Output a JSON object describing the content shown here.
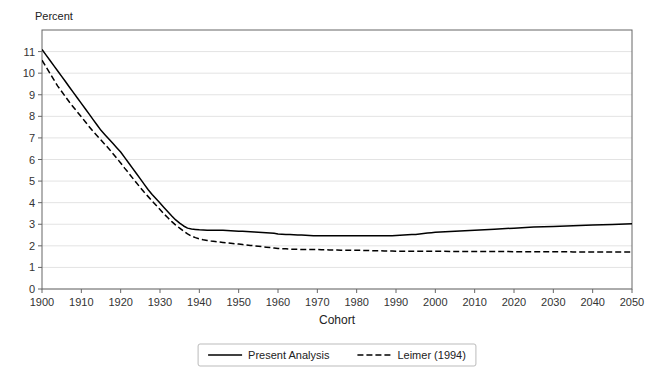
{
  "chart_data": {
    "type": "line",
    "x_label": "Cohort",
    "y_label": "Percent",
    "xlim": [
      1900,
      2050
    ],
    "ylim": [
      0,
      12
    ],
    "xticks": [
      1900,
      1910,
      1920,
      1930,
      1940,
      1950,
      1960,
      1970,
      1980,
      1990,
      2000,
      2010,
      2020,
      2030,
      2040,
      2050
    ],
    "yticks": [
      0,
      1,
      2,
      3,
      4,
      5,
      6,
      7,
      8,
      9,
      10,
      11
    ],
    "grid": true,
    "legend": "bottom",
    "series": [
      {
        "name": "Present Analysis",
        "color": "#000000",
        "line_style": "solid",
        "x": [
          1900,
          1901,
          1902,
          1903,
          1904,
          1905,
          1906,
          1907,
          1908,
          1909,
          1910,
          1911,
          1912,
          1913,
          1914,
          1915,
          1916,
          1917,
          1918,
          1919,
          1920,
          1921,
          1922,
          1923,
          1924,
          1925,
          1926,
          1927,
          1928,
          1929,
          1930,
          1931,
          1932,
          1933,
          1934,
          1935,
          1936,
          1937,
          1938,
          1939,
          1940,
          1941,
          1942,
          1943,
          1944,
          1945,
          1946,
          1947,
          1948,
          1949,
          1950,
          1951,
          1952,
          1953,
          1954,
          1955,
          1956,
          1957,
          1958,
          1959,
          1960,
          1961,
          1962,
          1963,
          1964,
          1965,
          1966,
          1967,
          1968,
          1969,
          1970,
          1971,
          1972,
          1973,
          1974,
          1975,
          1976,
          1977,
          1978,
          1979,
          1980,
          1981,
          1982,
          1983,
          1984,
          1985,
          1986,
          1987,
          1988,
          1989,
          1990,
          1991,
          1992,
          1993,
          1994,
          1995,
          1996,
          1997,
          1998,
          1999,
          2000,
          2005,
          2010,
          2015,
          2020,
          2025,
          2030,
          2035,
          2040,
          2045,
          2050
        ],
        "values": [
          11.1,
          10.85,
          10.6,
          10.35,
          10.1,
          9.85,
          9.6,
          9.35,
          9.1,
          8.85,
          8.6,
          8.35,
          8.1,
          7.85,
          7.6,
          7.35,
          7.15,
          6.95,
          6.75,
          6.55,
          6.35,
          6.1,
          5.85,
          5.6,
          5.35,
          5.1,
          4.85,
          4.6,
          4.38,
          4.18,
          3.98,
          3.78,
          3.58,
          3.38,
          3.2,
          3.05,
          2.92,
          2.82,
          2.78,
          2.76,
          2.74,
          2.73,
          2.72,
          2.72,
          2.72,
          2.72,
          2.72,
          2.71,
          2.7,
          2.69,
          2.68,
          2.67,
          2.66,
          2.65,
          2.64,
          2.63,
          2.62,
          2.61,
          2.6,
          2.58,
          2.55,
          2.54,
          2.53,
          2.52,
          2.51,
          2.5,
          2.5,
          2.49,
          2.48,
          2.47,
          2.47,
          2.47,
          2.47,
          2.47,
          2.47,
          2.47,
          2.47,
          2.47,
          2.47,
          2.47,
          2.47,
          2.47,
          2.47,
          2.47,
          2.47,
          2.47,
          2.47,
          2.47,
          2.47,
          2.47,
          2.48,
          2.49,
          2.5,
          2.51,
          2.52,
          2.53,
          2.55,
          2.57,
          2.59,
          2.61,
          2.63,
          2.68,
          2.72,
          2.77,
          2.82,
          2.87,
          2.9,
          2.93,
          2.96,
          2.99,
          3.02
        ]
      },
      {
        "name": "Leimer (1994)",
        "color": "#000000",
        "line_style": "dashed",
        "x": [
          1900,
          1901,
          1902,
          1903,
          1904,
          1905,
          1906,
          1907,
          1908,
          1909,
          1910,
          1911,
          1912,
          1913,
          1914,
          1915,
          1916,
          1917,
          1918,
          1919,
          1920,
          1921,
          1922,
          1923,
          1924,
          1925,
          1926,
          1927,
          1928,
          1929,
          1930,
          1931,
          1932,
          1933,
          1934,
          1935,
          1936,
          1937,
          1938,
          1939,
          1940,
          1941,
          1942,
          1943,
          1944,
          1945,
          1946,
          1947,
          1948,
          1949,
          1950,
          1951,
          1952,
          1953,
          1954,
          1955,
          1956,
          1957,
          1958,
          1959,
          1960,
          1961,
          1962,
          1963,
          1964,
          1965,
          1966,
          1967,
          1968,
          1969,
          1970,
          1971,
          1972,
          1973,
          1974,
          1975,
          1976,
          1977,
          1978,
          1979,
          1980,
          1981,
          1982,
          1983,
          1984,
          1985,
          1986,
          1987,
          1988,
          1989,
          1990,
          1995,
          2000,
          2005,
          2010,
          2015,
          2020,
          2025,
          2030,
          2035,
          2040,
          2045,
          2050
        ],
        "values": [
          10.6,
          10.3,
          10.0,
          9.7,
          9.4,
          9.15,
          8.9,
          8.65,
          8.42,
          8.2,
          7.98,
          7.75,
          7.52,
          7.3,
          7.1,
          6.9,
          6.7,
          6.5,
          6.28,
          6.06,
          5.84,
          5.6,
          5.38,
          5.15,
          4.92,
          4.7,
          4.48,
          4.28,
          4.08,
          3.88,
          3.68,
          3.48,
          3.3,
          3.12,
          2.96,
          2.82,
          2.68,
          2.55,
          2.45,
          2.38,
          2.32,
          2.28,
          2.25,
          2.22,
          2.2,
          2.18,
          2.16,
          2.14,
          2.12,
          2.1,
          2.08,
          2.06,
          2.04,
          2.02,
          2.0,
          1.98,
          1.96,
          1.94,
          1.92,
          1.9,
          1.88,
          1.87,
          1.86,
          1.85,
          1.84,
          1.84,
          1.83,
          1.83,
          1.83,
          1.83,
          1.83,
          1.82,
          1.82,
          1.81,
          1.81,
          1.81,
          1.8,
          1.8,
          1.8,
          1.79,
          1.79,
          1.79,
          1.78,
          1.78,
          1.77,
          1.77,
          1.77,
          1.76,
          1.76,
          1.76,
          1.75,
          1.75,
          1.75,
          1.74,
          1.74,
          1.74,
          1.73,
          1.73,
          1.73,
          1.72,
          1.72,
          1.71,
          1.71
        ]
      }
    ]
  }
}
